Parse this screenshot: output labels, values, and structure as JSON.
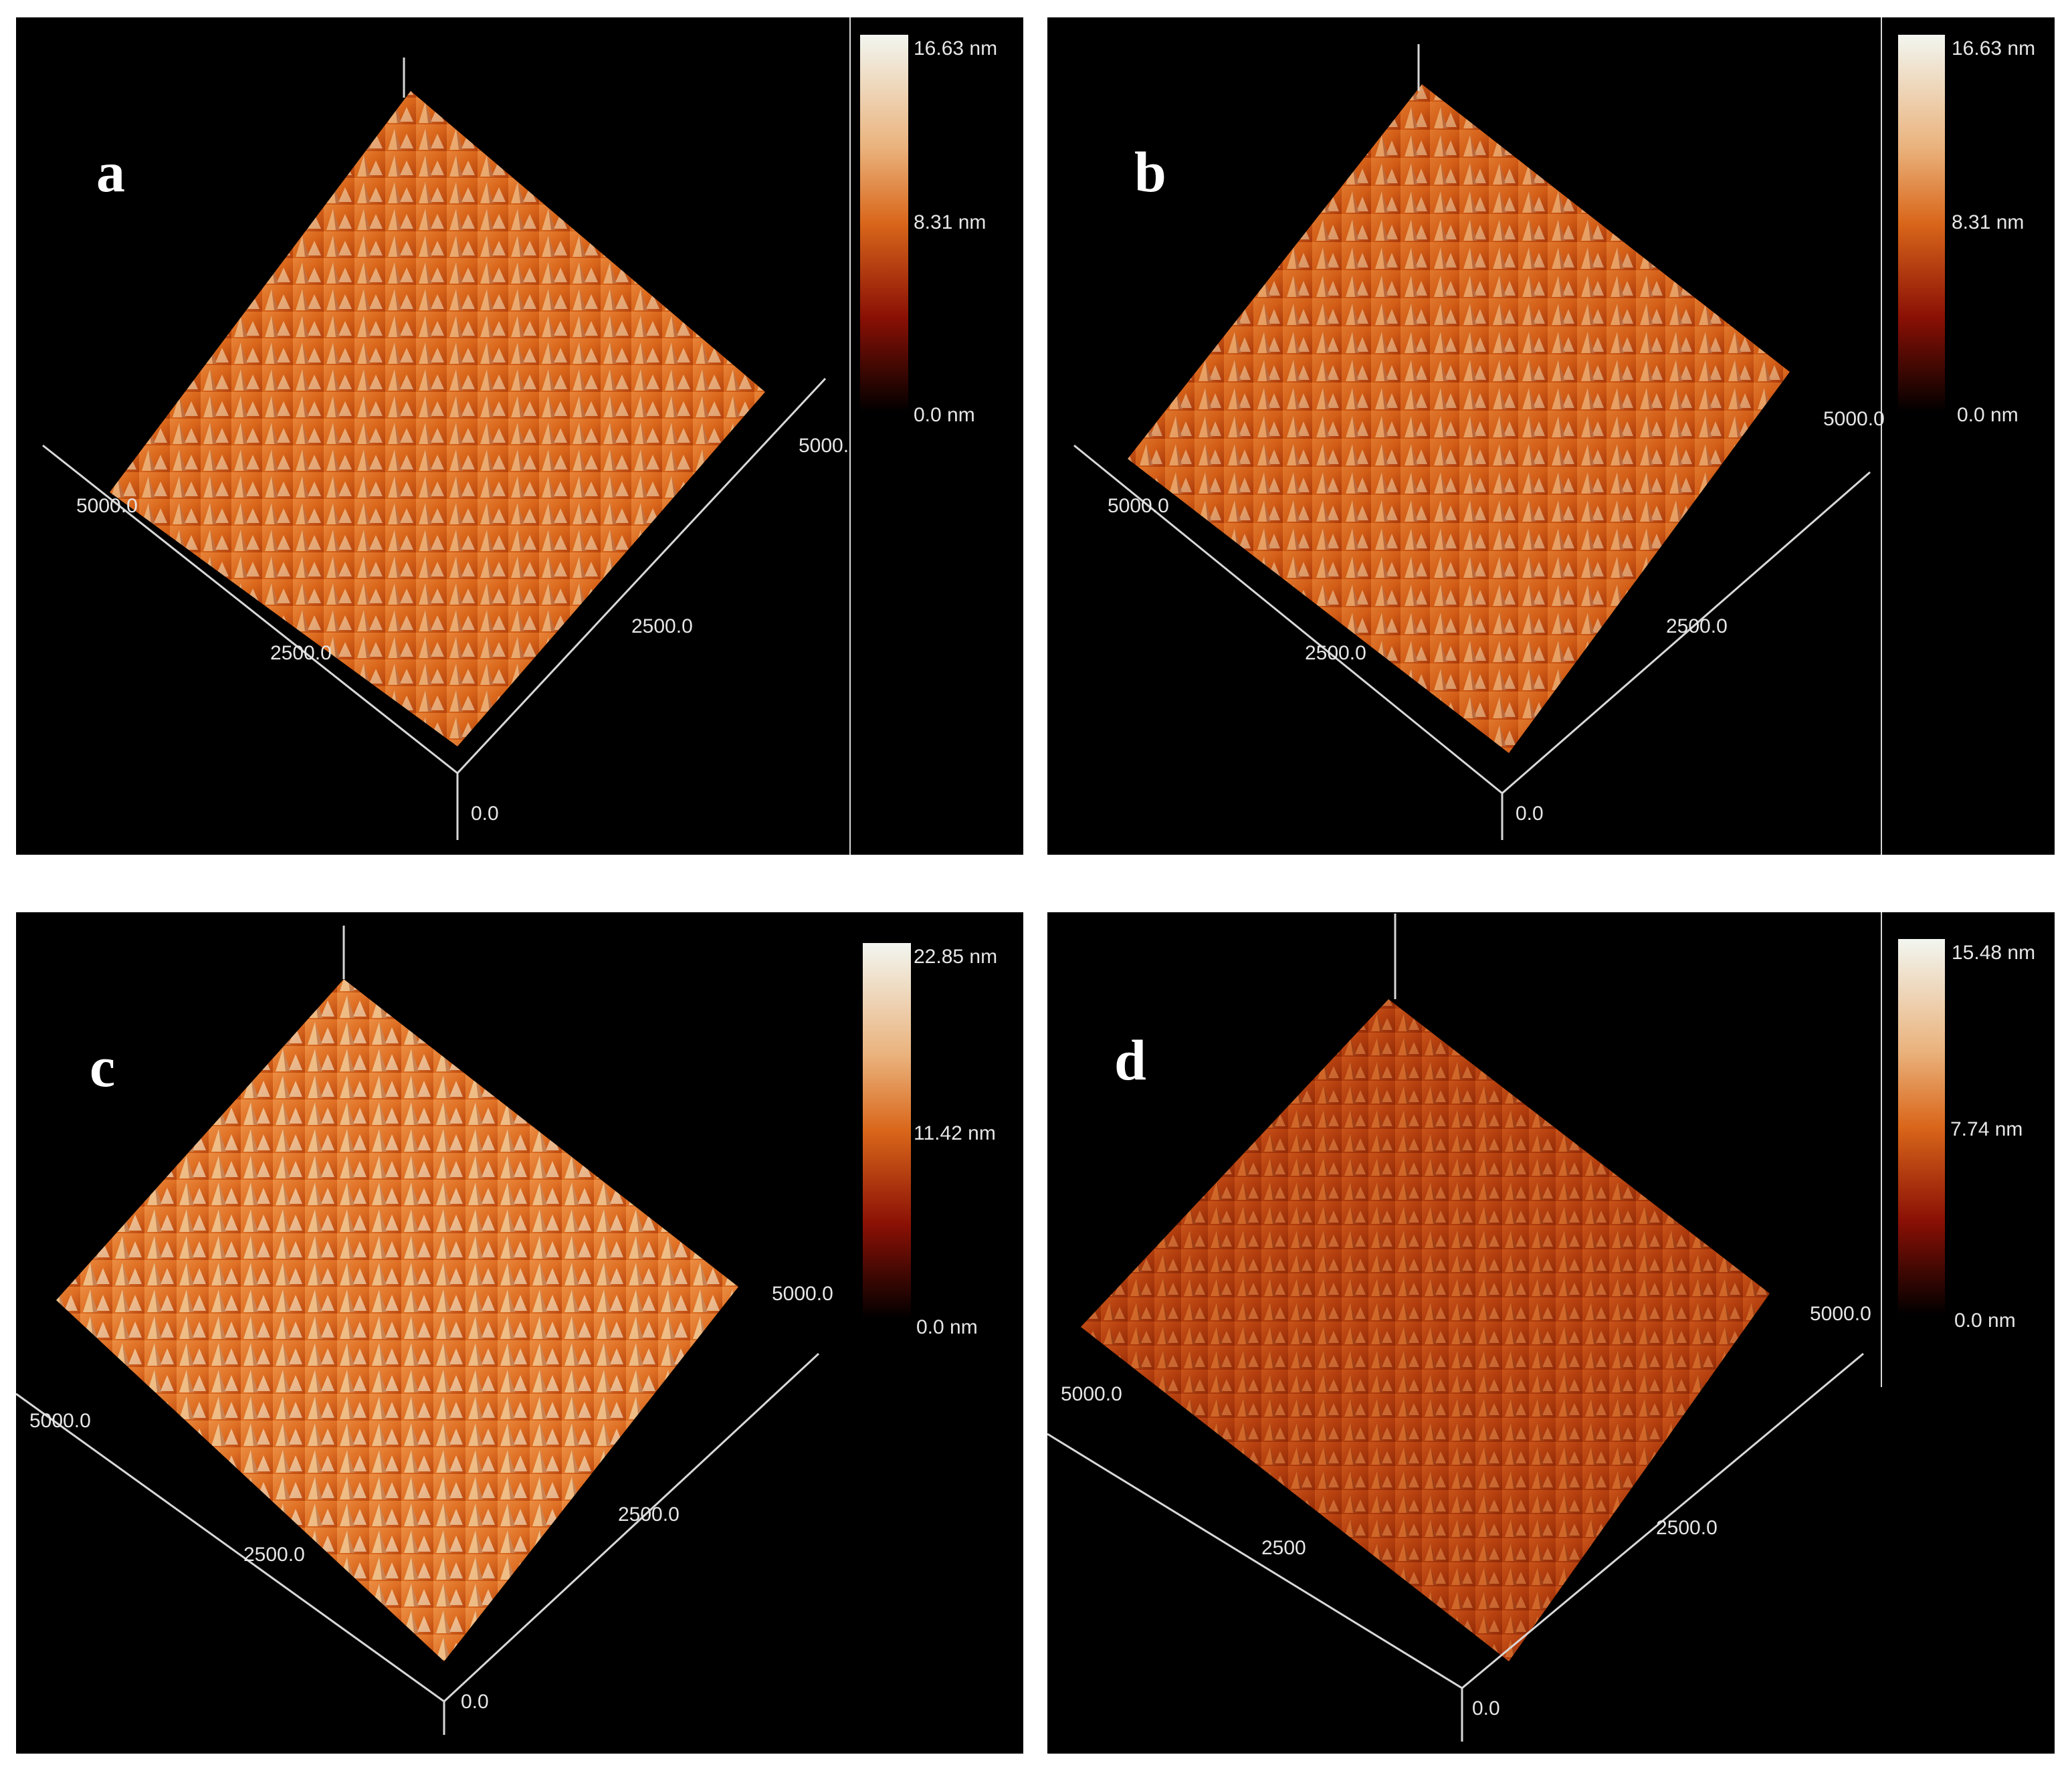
{
  "panels": [
    {
      "id": "a",
      "letter": "a",
      "cbar_max": "16.63 nm",
      "cbar_mid": "8.31 nm",
      "cbar_min": "0.0 nm",
      "axis_left": "5000.0",
      "axis_right": "5000.",
      "axis_mid_left": "2500.0",
      "axis_mid_right": "2500.0",
      "axis_origin": "0.0"
    },
    {
      "id": "b",
      "letter": "b",
      "cbar_max": "16.63 nm",
      "cbar_mid": "8.31 nm",
      "cbar_min": "0.0 nm",
      "axis_left": "5000.0",
      "axis_right": "5000.0",
      "axis_mid_left": "2500.0",
      "axis_mid_right": "2500.0",
      "axis_origin": "0.0"
    },
    {
      "id": "c",
      "letter": "c",
      "cbar_max": "22.85 nm",
      "cbar_mid": "11.42 nm",
      "cbar_min": "0.0 nm",
      "axis_left": "5000.0",
      "axis_right": "5000.0",
      "axis_mid_left": "2500.0",
      "axis_mid_right": "2500.0",
      "axis_origin": "0.0"
    },
    {
      "id": "d",
      "letter": "d",
      "cbar_max": "15.48 nm",
      "cbar_mid": "7.74 nm",
      "cbar_min": "0.0 nm",
      "axis_left": "5000.0",
      "axis_right": "5000.0",
      "axis_mid_left": "2500",
      "axis_mid_right": "2500.0",
      "axis_origin": "0.0"
    }
  ],
  "colors": {
    "background": "#000000",
    "surface_low": "#7a1a05",
    "surface_mid": "#d9661a",
    "surface_high": "#f4e3c8",
    "colorbar_top": "#f2f6f0",
    "colorbar_mid": "#d96a1c",
    "colorbar_low": "#8a1005",
    "colorbar_bottom": "#000000"
  }
}
